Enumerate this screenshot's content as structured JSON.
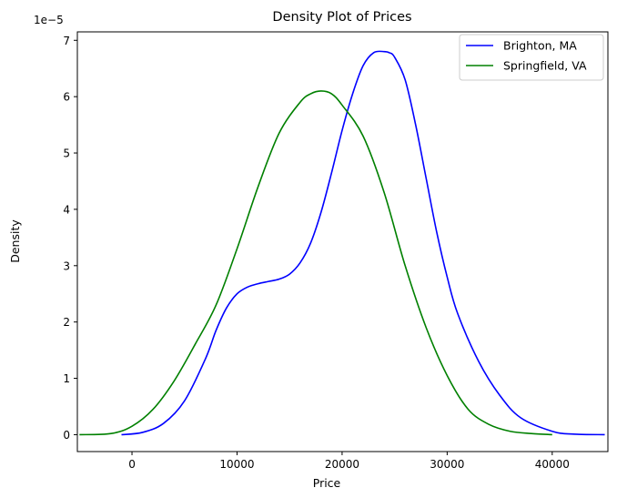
{
  "chart_data": {
    "type": "line",
    "title": "Density Plot of Prices",
    "xlabel": "Price",
    "ylabel": "Density",
    "y_offset_text": "1e−5",
    "xlim": [
      -5200,
      45300
    ],
    "ylim": [
      -0.3,
      7.15
    ],
    "y_scale_multiplier": 1e-05,
    "x_ticks": [
      0,
      10000,
      20000,
      30000,
      40000
    ],
    "x_tick_labels": [
      "0",
      "10000",
      "20000",
      "30000",
      "40000"
    ],
    "y_ticks": [
      0,
      1,
      2,
      3,
      4,
      5,
      6,
      7
    ],
    "y_tick_labels": [
      "0",
      "1",
      "2",
      "3",
      "4",
      "5",
      "6",
      "7"
    ],
    "grid": false,
    "legend_position": "top-right",
    "series": [
      {
        "name": "Brighton, MA",
        "color": "#0000ff",
        "x": [
          -1000,
          1000,
          3000,
          5000,
          7000,
          8000,
          9000,
          10000,
          11000,
          12000,
          13000,
          14000,
          15000,
          16000,
          17000,
          18000,
          19000,
          20000,
          21000,
          22000,
          23000,
          24000,
          24500,
          25000,
          26000,
          27000,
          28000,
          29000,
          30000,
          31000,
          33000,
          35000,
          37000,
          40000,
          42000,
          45000
        ],
        "y": [
          0,
          0.04,
          0.2,
          0.6,
          1.35,
          1.85,
          2.25,
          2.5,
          2.62,
          2.68,
          2.72,
          2.76,
          2.85,
          3.05,
          3.4,
          3.95,
          4.65,
          5.4,
          6.05,
          6.55,
          6.78,
          6.8,
          6.78,
          6.7,
          6.3,
          5.5,
          4.55,
          3.6,
          2.8,
          2.15,
          1.3,
          0.7,
          0.3,
          0.06,
          0.01,
          0
        ]
      },
      {
        "name": "Springfield, VA",
        "color": "#008000",
        "x": [
          -5000,
          -2000,
          0,
          2000,
          4000,
          6000,
          8000,
          10000,
          12000,
          14000,
          16000,
          17000,
          18000,
          19000,
          20000,
          22000,
          24000,
          26000,
          28000,
          30000,
          32000,
          34000,
          36000,
          38000,
          40000
        ],
        "y": [
          0,
          0.02,
          0.15,
          0.45,
          0.95,
          1.6,
          2.3,
          3.3,
          4.4,
          5.35,
          5.9,
          6.05,
          6.1,
          6.05,
          5.85,
          5.3,
          4.3,
          3.0,
          1.9,
          1.05,
          0.45,
          0.18,
          0.06,
          0.02,
          0
        ]
      }
    ]
  }
}
